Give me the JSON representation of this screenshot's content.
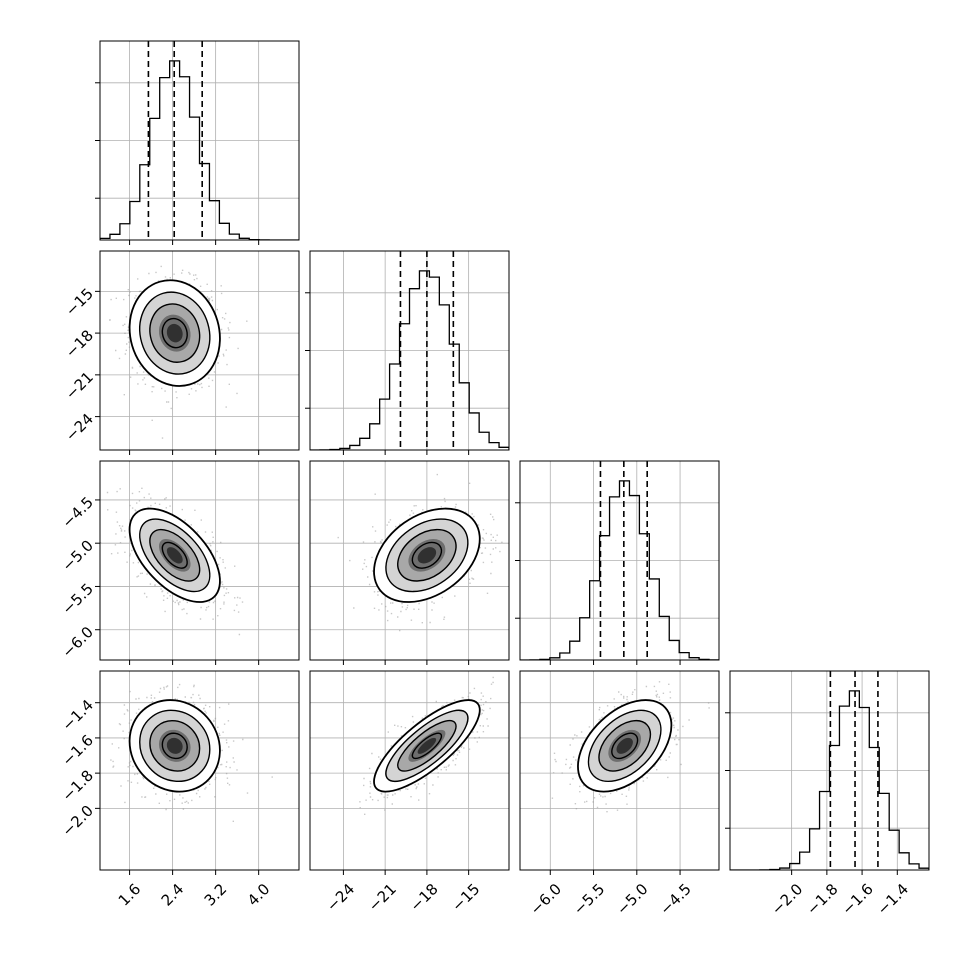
{
  "chart_data": {
    "type": "corner",
    "description_free": true,
    "grid": true,
    "colors": {
      "line": "#000000",
      "grid": "#b0b0b0",
      "scatter": "#9a9a9a",
      "density_dark": "#1a1a1a",
      "density_light": "#ffffff"
    },
    "parameters": [
      {
        "range": [
          1.05,
          4.75
        ],
        "ticks": [
          1.6,
          2.4,
          3.2,
          4.0
        ],
        "tick_labels": [
          "1.6",
          "2.4",
          "3.2",
          "4.0"
        ],
        "quantiles": [
          1.95,
          2.43,
          2.95
        ],
        "mean": 2.44,
        "std": 0.42
      },
      {
        "range": [
          -26.4,
          -12.1
        ],
        "ticks": [
          -24,
          -21,
          -18,
          -15
        ],
        "tick_labels": [
          "−24",
          "−21",
          "−18",
          "−15"
        ],
        "quantiles": [
          -19.9,
          -18.0,
          -16.1
        ],
        "mean": -18.0,
        "std": 1.9
      },
      {
        "range": [
          -6.35,
          -4.05
        ],
        "ticks": [
          -6.0,
          -5.5,
          -5.0,
          -4.5
        ],
        "tick_labels": [
          "−6.0",
          "−5.5",
          "−5.0",
          "−4.5"
        ],
        "quantiles": [
          -5.42,
          -5.15,
          -4.88
        ],
        "mean": -5.14,
        "std": 0.27
      },
      {
        "range": [
          -2.35,
          -1.22
        ],
        "ticks": [
          -2.0,
          -1.8,
          -1.6,
          -1.4
        ],
        "tick_labels": [
          "−2.0",
          "−1.8",
          "−1.6",
          "−1.4"
        ],
        "quantiles": [
          -1.78,
          -1.64,
          -1.51
        ],
        "mean": -1.645,
        "std": 0.13
      }
    ],
    "correlations": {
      "1-0": -0.1,
      "2-0": -0.55,
      "2-1": 0.35,
      "3-0": -0.1,
      "3-1": 0.78,
      "3-2": 0.45
    }
  }
}
